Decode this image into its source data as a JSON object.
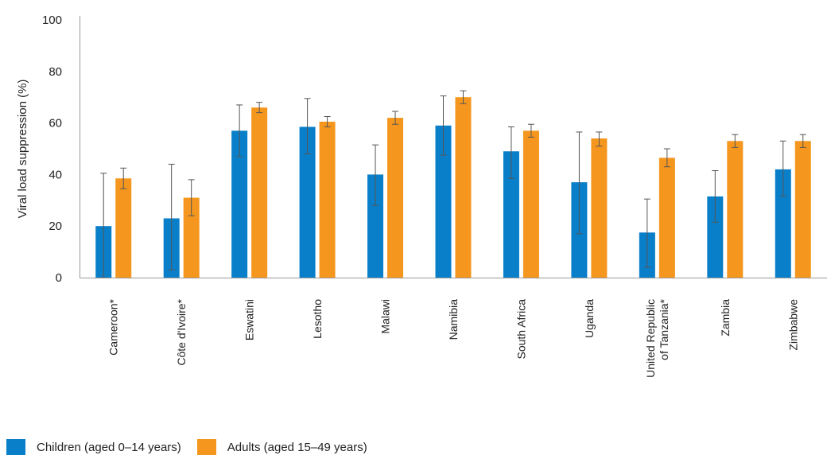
{
  "chart_data": {
    "type": "bar",
    "ylabel": "Viral load suppression (%)",
    "ylim": [
      0,
      100
    ],
    "yticks": [
      "0",
      "20",
      "40",
      "60",
      "80",
      "100"
    ],
    "categories": [
      [
        "Cameroon*"
      ],
      [
        "Côte d'Ivoire*"
      ],
      [
        "Eswatini"
      ],
      [
        "Lesotho"
      ],
      [
        "Malawi"
      ],
      [
        "Namibia"
      ],
      [
        "South Africa"
      ],
      [
        "Uganda"
      ],
      [
        "United Republic",
        "of Tanzania*"
      ],
      [
        "Zambia"
      ],
      [
        "Zimbabwe"
      ]
    ],
    "series": [
      {
        "name": "Children (aged 0–14 years)",
        "color": "#0a7fc9",
        "values": [
          20,
          23,
          57,
          58.5,
          40,
          59,
          49,
          37,
          17.5,
          31.5,
          42
        ],
        "error_low": [
          0,
          3,
          47,
          48,
          28,
          47.5,
          38.5,
          17,
          4,
          21.5,
          31.5
        ],
        "error_high": [
          40.5,
          44,
          67,
          69.5,
          51.5,
          70.5,
          58.5,
          56.5,
          30.5,
          41.5,
          53
        ]
      },
      {
        "name": "Adults (aged 15–49 years)",
        "color": "#f5961e",
        "values": [
          38.5,
          31,
          66,
          60.5,
          62,
          70,
          57,
          54,
          46.5,
          53,
          53
        ],
        "error_low": [
          34.5,
          24,
          64,
          58.5,
          59.5,
          67.5,
          54.5,
          51,
          43,
          50.5,
          50.5
        ],
        "error_high": [
          42.5,
          38,
          68,
          62.5,
          64.5,
          72.5,
          59.5,
          56.5,
          50,
          55.5,
          55.5
        ]
      }
    ],
    "grid": false,
    "legend_position": "bottom-left"
  }
}
